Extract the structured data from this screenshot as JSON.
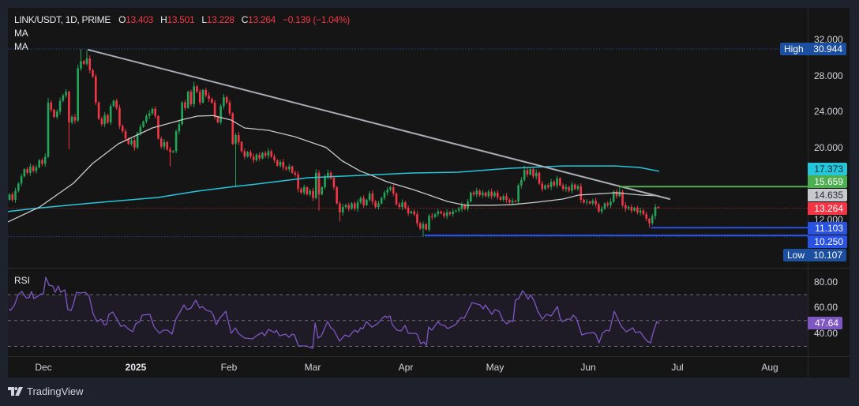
{
  "legend": {
    "symbol": "LINK/USDT, 1D, PRIME",
    "o_key": "O",
    "o_val": "13.403",
    "h_key": "H",
    "h_val": "13.501",
    "l_key": "L",
    "l_val": "13.228",
    "c_key": "C",
    "c_val": "13.264",
    "change": "−0.139 (−1.04%)",
    "ma_1": "MA",
    "ma_2": "MA"
  },
  "rsi_pane": {
    "title": "RSI"
  },
  "price_axis": {
    "ticks": [
      "32.000",
      "28.000",
      "24.000",
      "20.000",
      "12.000"
    ],
    "high_title": "High",
    "high_value": "30.944",
    "ma200_value": "17.373",
    "green_level_value": "15.659",
    "ma50_value": "14.635",
    "last_value": "13.264",
    "blue_level_1_value": "11.103",
    "blue_level_2_value": "10.250",
    "low_title": "Low",
    "low_value": "10.107"
  },
  "rsi_axis": {
    "ticks": [
      "80.00",
      "60.00",
      "40.00"
    ],
    "value": "47.64"
  },
  "time_axis": {
    "labels": [
      "Dec",
      "2025",
      "Feb",
      "Mar",
      "Apr",
      "May",
      "Jun",
      "Jul",
      "Aug"
    ]
  },
  "footer": {
    "brand": "TradingView"
  },
  "colors": {
    "up": "#23a559",
    "down": "#f23645",
    "ma50": "#c8c8c8",
    "ma200": "#26c6da",
    "trendline": "#a9acb4",
    "level_green": "#4caf50",
    "level_blue": "#2a52e0",
    "rsi": "#7e57c2",
    "rsi_band": "rgba(126,87,194,0.10)",
    "rsi_level": "#787b86"
  },
  "chart_data": {
    "type": "candlestick",
    "title": "LINK/USDT, 1D, PRIME",
    "start_date": "2024-11-19",
    "interval": "1D",
    "xlabel": "",
    "ylabel": "",
    "xlim": [
      -0.53,
      268.2
    ],
    "ylim": [
      6.65,
      35.51
    ],
    "first_open": 14.2,
    "close": [
      14.8,
      14.2,
      15.2,
      16.0,
      16.8,
      17.6,
      17.2,
      17.9,
      17.4,
      17.8,
      18.6,
      18.2,
      19.0,
      25.0,
      24.2,
      23.4,
      24.0,
      25.2,
      25.8,
      26.2,
      22.8,
      23.4,
      23.0,
      28.8,
      29.6,
      29.3,
      29.9,
      28.6,
      27.9,
      25.0,
      23.2,
      22.6,
      23.6,
      22.8,
      24.6,
      25.2,
      24.4,
      22.4,
      21.8,
      21.0,
      20.4,
      20.8,
      20.0,
      21.6,
      22.3,
      22.9,
      23.5,
      23.8,
      24.3,
      23.5,
      21.0,
      20.1,
      20.6,
      19.8,
      19.5,
      19.6,
      21.8,
      22.6,
      25.0,
      24.4,
      26.2,
      24.8,
      26.8,
      26.2,
      25.0,
      26.4,
      25.8,
      25.4,
      25.0,
      23.4,
      22.8,
      24.6,
      25.6,
      25.0,
      23.8,
      20.4,
      21.4,
      20.6,
      19.6,
      19.0,
      19.5,
      19.0,
      18.6,
      19.2,
      18.8,
      19.4,
      19.1,
      19.6,
      19.0,
      18.6,
      18.0,
      18.4,
      17.8,
      17.6,
      17.9,
      17.2,
      17.0,
      15.4,
      15.0,
      15.6,
      14.8,
      15.2,
      14.4,
      17.2,
      14.8,
      15.6,
      16.8,
      17.2,
      16.6,
      15.6,
      13.8,
      12.8,
      13.4,
      13.6,
      13.2,
      13.8,
      13.2,
      13.9,
      14.4,
      13.6,
      14.2,
      14.9,
      14.0,
      13.4,
      13.8,
      14.4,
      15.0,
      15.3,
      15.6,
      14.9,
      13.7,
      13.4,
      13.9,
      13.3,
      12.7,
      12.9,
      12.6,
      11.6,
      11.0,
      11.5,
      10.9,
      12.4,
      12.3,
      12.6,
      12.9,
      12.7,
      12.4,
      12.8,
      12.6,
      12.9,
      13.0,
      13.2,
      13.6,
      13.2,
      14.0,
      15.0,
      14.8,
      15.2,
      14.7,
      15.0,
      14.6,
      15.1,
      14.6,
      15.0,
      14.5,
      14.2,
      14.6,
      14.2,
      13.9,
      14.1,
      14.0,
      15.8,
      16.4,
      17.5,
      17.0,
      17.6,
      16.8,
      17.2,
      16.0,
      15.4,
      15.8,
      15.6,
      16.2,
      15.8,
      16.6,
      15.8,
      15.4,
      15.6,
      15.2,
      15.9,
      15.4,
      15.7,
      14.2,
      13.9,
      14.0,
      13.8,
      14.1,
      13.7,
      12.9,
      13.2,
      13.8,
      13.6,
      14.0,
      15.1,
      14.6,
      15.1,
      13.6,
      13.2,
      13.4,
      13.0,
      13.3,
      12.8,
      13.0,
      12.6,
      12.1,
      11.6,
      12.4,
      13.403,
      13.264
    ],
    "high_overrides": {
      "13": 25.5,
      "23": 29.2,
      "24": 30.944,
      "26": 30.8,
      "62": 27.3,
      "103": 17.6,
      "173": 18.0,
      "205": 15.659,
      "218": 13.501
    },
    "low_overrides": {
      "20": 19.8,
      "54": 17.9,
      "76": 15.6,
      "104": 13.0,
      "111": 11.8,
      "139": 10.107,
      "215": 11.103,
      "218": 13.228
    },
    "last": {
      "open": 13.403,
      "high": 13.501,
      "low": 13.228,
      "close": 13.264,
      "change": -0.139,
      "change_pct": -1.04
    },
    "ma_50": [
      [
        -0.5,
        11.75
      ],
      [
        10.1,
        13.4
      ],
      [
        21.5,
        16.04
      ],
      [
        27.9,
        18.23
      ],
      [
        36.6,
        20.42
      ],
      [
        48,
        22.18
      ],
      [
        58.6,
        23.14
      ],
      [
        63.1,
        23.49
      ],
      [
        68.4,
        23.55
      ],
      [
        74.5,
        23.05
      ],
      [
        79,
        22.18
      ],
      [
        87,
        21.91
      ],
      [
        95.8,
        21.21
      ],
      [
        106.4,
        20.0
      ],
      [
        111.7,
        18.54
      ],
      [
        117.9,
        17.38
      ],
      [
        121.5,
        16.94
      ],
      [
        126.8,
        16.2
      ],
      [
        135.6,
        15.33
      ],
      [
        140.9,
        14.75
      ],
      [
        147.1,
        14.02
      ],
      [
        153.3,
        13.58
      ],
      [
        162.1,
        13.6
      ],
      [
        168.4,
        13.65
      ],
      [
        177.2,
        13.93
      ],
      [
        185.9,
        14.28
      ],
      [
        191.2,
        14.72
      ],
      [
        203.7,
        14.98
      ],
      [
        212.5,
        14.72
      ],
      [
        218.3,
        14.635
      ]
    ],
    "ma_200": [
      [
        -0.5,
        12.9
      ],
      [
        10.1,
        13.3
      ],
      [
        27.9,
        13.84
      ],
      [
        49.9,
        14.46
      ],
      [
        63.1,
        15.16
      ],
      [
        76.4,
        15.7
      ],
      [
        81.7,
        15.9
      ],
      [
        100.3,
        16.65
      ],
      [
        118,
        16.91
      ],
      [
        135.5,
        17.18
      ],
      [
        150.7,
        17.26
      ],
      [
        168.4,
        17.7
      ],
      [
        185.9,
        17.96
      ],
      [
        203.7,
        17.96
      ],
      [
        211.7,
        17.79
      ],
      [
        218.3,
        17.373
      ]
    ],
    "trendline": [
      [
        26.5,
        30.86
      ],
      [
        221.8,
        14.28
      ]
    ],
    "horizontal_levels": [
      {
        "price": 15.659,
        "from_day": 205,
        "color": "#4caf50"
      },
      {
        "price": 11.103,
        "from_day": 215.5,
        "color": "#2a52e0"
      },
      {
        "price": 10.25,
        "from_day": 139.5,
        "color": "#2a52e0"
      }
    ],
    "dotted_levels": [
      {
        "name": "high-level",
        "price": 30.944,
        "color": "#2962ff"
      },
      {
        "name": "low-level",
        "price": 10.107,
        "color": "#2962ff"
      },
      {
        "name": "last-price-level",
        "price": 13.264,
        "color": "#f23645"
      }
    ],
    "price_ticks": [
      32,
      28,
      24,
      20,
      12
    ],
    "time_ticks": [
      {
        "day": 12,
        "label": "Dec"
      },
      {
        "day": 43,
        "label": "2025"
      },
      {
        "day": 74,
        "label": "Feb"
      },
      {
        "day": 102,
        "label": "Mar"
      },
      {
        "day": 133,
        "label": "Apr"
      },
      {
        "day": 163,
        "label": "May"
      },
      {
        "day": 194,
        "label": "Jun"
      },
      {
        "day": 224,
        "label": "Jul"
      },
      {
        "day": 255,
        "label": "Aug"
      }
    ],
    "rsi": {
      "ylim": [
        22.4,
        90.7
      ],
      "levels": [
        70,
        50,
        30
      ],
      "ticks": [
        80,
        60,
        40
      ],
      "last": 47.64,
      "points": [
        [
          0,
          59
        ],
        [
          0.3,
          57.7
        ],
        [
          1.6,
          61.4
        ],
        [
          2.9,
          69.9
        ],
        [
          4.2,
          72.4
        ],
        [
          5.6,
          67.5
        ],
        [
          6.6,
          67.5
        ],
        [
          7.4,
          72.4
        ],
        [
          8.2,
          66.9
        ],
        [
          9.5,
          68.7
        ],
        [
          10.6,
          70.5
        ],
        [
          11.4,
          70.5
        ],
        [
          12.2,
          83.4
        ],
        [
          13.3,
          77.3
        ],
        [
          14.6,
          76.6
        ],
        [
          15.4,
          71.8
        ],
        [
          16.4,
          76.6
        ],
        [
          17.2,
          71.8
        ],
        [
          18.6,
          73.6
        ],
        [
          19.6,
          58.4
        ],
        [
          20.7,
          57.7
        ],
        [
          21.5,
          62.6
        ],
        [
          22.5,
          71.8
        ],
        [
          23.9,
          71.2
        ],
        [
          25.5,
          71.8
        ],
        [
          26.8,
          68.7
        ],
        [
          28.1,
          55.3
        ],
        [
          29.4,
          49.2
        ],
        [
          30.8,
          51
        ],
        [
          31.8,
          46.8
        ],
        [
          32.6,
          46.8
        ],
        [
          33.4,
          54.7
        ],
        [
          34.7,
          56.5
        ],
        [
          35.8,
          52.3
        ],
        [
          37.4,
          45.5
        ],
        [
          38.7,
          46.2
        ],
        [
          40.1,
          43.1
        ],
        [
          41.4,
          41.3
        ],
        [
          42.4,
          47.4
        ],
        [
          43.8,
          49.2
        ],
        [
          44.6,
          54.1
        ],
        [
          47.2,
          54.7
        ],
        [
          48.5,
          45.5
        ],
        [
          50.4,
          40.1
        ],
        [
          51.7,
          42.5
        ],
        [
          53.1,
          42.5
        ],
        [
          54.6,
          39.5
        ],
        [
          56,
          51.6
        ],
        [
          57.3,
          56.5
        ],
        [
          58.6,
          62
        ],
        [
          59.7,
          58.4
        ],
        [
          61,
          59.6
        ],
        [
          62.6,
          65.7
        ],
        [
          63.9,
          59.6
        ],
        [
          64.7,
          60.8
        ],
        [
          66.3,
          57.7
        ],
        [
          67.6,
          57.1
        ],
        [
          68.4,
          54.7
        ],
        [
          69.5,
          46.8
        ],
        [
          70.6,
          51.6
        ],
        [
          72.7,
          57.1
        ],
        [
          74.5,
          40.1
        ],
        [
          75.9,
          44.3
        ],
        [
          76.9,
          40.1
        ],
        [
          79,
          36.4
        ],
        [
          81.7,
          35.8
        ],
        [
          83,
          38.2
        ],
        [
          84.9,
          40.7
        ],
        [
          85.7,
          38.2
        ],
        [
          87,
          43.1
        ],
        [
          89.1,
          40.7
        ],
        [
          89.7,
          42.5
        ],
        [
          90.7,
          38.2
        ],
        [
          92.8,
          39.5
        ],
        [
          93.9,
          37
        ],
        [
          95,
          39.5
        ],
        [
          95.8,
          38.8
        ],
        [
          97.1,
          30.3
        ],
        [
          99.7,
          30.3
        ],
        [
          101.9,
          28.5
        ],
        [
          102.7,
          48
        ],
        [
          103.7,
          36.4
        ],
        [
          104.8,
          38.2
        ],
        [
          106.4,
          46.8
        ],
        [
          106.9,
          49.2
        ],
        [
          108,
          44.3
        ],
        [
          109,
          42.5
        ],
        [
          110.9,
          34
        ],
        [
          112.7,
          38.8
        ],
        [
          114.1,
          37.6
        ],
        [
          115.4,
          41.3
        ],
        [
          116.2,
          42.5
        ],
        [
          117,
          40.7
        ],
        [
          118,
          44.3
        ],
        [
          118.8,
          43.7
        ],
        [
          119.9,
          49.2
        ],
        [
          121.8,
          44.9
        ],
        [
          123.6,
          47.4
        ],
        [
          125.5,
          52.3
        ],
        [
          126.3,
          53.5
        ],
        [
          126.8,
          52.3
        ],
        [
          127.9,
          53.5
        ],
        [
          128.6,
          46.8
        ],
        [
          130.2,
          42.5
        ],
        [
          131.6,
          41.9
        ],
        [
          132.9,
          46.2
        ],
        [
          134,
          40.1
        ],
        [
          136.3,
          40.1
        ],
        [
          136.9,
          39.5
        ],
        [
          138.2,
          32.1
        ],
        [
          139.3,
          33.4
        ],
        [
          140.1,
          30.9
        ],
        [
          140.8,
          44.9
        ],
        [
          141.9,
          42.5
        ],
        [
          144,
          49.2
        ],
        [
          144.8,
          46.8
        ],
        [
          146.2,
          46.2
        ],
        [
          147.2,
          43.7
        ],
        [
          149.9,
          46.8
        ],
        [
          151.7,
          52.3
        ],
        [
          152.8,
          51.6
        ],
        [
          155.4,
          63.8
        ],
        [
          157.3,
          62.6
        ],
        [
          158.1,
          62
        ],
        [
          159.2,
          59
        ],
        [
          159.9,
          62
        ],
        [
          162.1,
          54.7
        ],
        [
          163.1,
          58.4
        ],
        [
          164.5,
          57.1
        ],
        [
          165.8,
          50.4
        ],
        [
          167.1,
          47.4
        ],
        [
          168.4,
          49.8
        ],
        [
          169.2,
          49.2
        ],
        [
          170,
          65.7
        ],
        [
          171.1,
          66.9
        ],
        [
          172.4,
          73
        ],
        [
          173.2,
          70.5
        ],
        [
          174.3,
          66.3
        ],
        [
          175.1,
          69.9
        ],
        [
          176.4,
          64.5
        ],
        [
          177.5,
          57.1
        ],
        [
          178.2,
          54.7
        ],
        [
          179,
          51
        ],
        [
          180.4,
          54.7
        ],
        [
          182,
          53.5
        ],
        [
          184.1,
          60.8
        ],
        [
          185.1,
          51
        ],
        [
          185.9,
          49.2
        ],
        [
          187.3,
          51
        ],
        [
          188.6,
          51
        ],
        [
          189.4,
          54.1
        ],
        [
          190.5,
          51.6
        ],
        [
          192.3,
          38.8
        ],
        [
          193.9,
          40.1
        ],
        [
          196.3,
          40.7
        ],
        [
          197.1,
          38.8
        ],
        [
          198.1,
          32.7
        ],
        [
          199.2,
          40.1
        ],
        [
          200.5,
          42.5
        ],
        [
          201.6,
          41.9
        ],
        [
          203.2,
          57.1
        ],
        [
          204.2,
          52.3
        ],
        [
          205.6,
          45.5
        ],
        [
          207.2,
          41.3
        ],
        [
          209.5,
          44.3
        ],
        [
          210.3,
          40.7
        ],
        [
          211.9,
          41.3
        ],
        [
          213,
          37.6
        ],
        [
          214.3,
          34
        ],
        [
          215.4,
          32.7
        ],
        [
          216.2,
          40.1
        ],
        [
          217.5,
          49.2
        ],
        [
          218.3,
          47.64
        ]
      ]
    }
  }
}
